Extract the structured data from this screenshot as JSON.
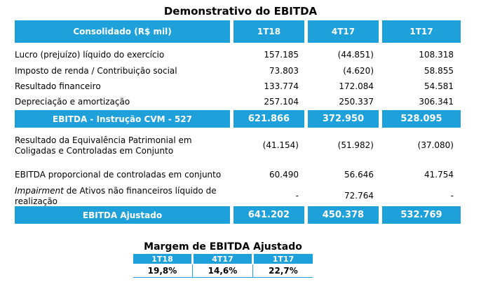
{
  "title": "Demonstrativo do EBITDA",
  "header": {
    "label": "Consolidado (R$ mil)",
    "periods": [
      "1T18",
      "4T17",
      "1T17"
    ]
  },
  "rows_a": [
    {
      "label": "Lucro (prejuízo) líquido do exercício",
      "values": [
        "157.185",
        "(44.851)",
        "108.318"
      ]
    },
    {
      "label": "Imposto de renda / Contribuição social",
      "values": [
        "73.803",
        "(4.620)",
        "58.855"
      ]
    },
    {
      "label": "Resultado financeiro",
      "values": [
        "133.774",
        "172.084",
        "54.581"
      ]
    },
    {
      "label": "Depreciação e amortização",
      "values": [
        "257.104",
        "250.337",
        "306.341"
      ]
    }
  ],
  "ebitda_cvm": {
    "label": "EBITDA - Instrução CVM - 527",
    "values": [
      "621.866",
      "372.950",
      "528.095"
    ]
  },
  "rows_b": [
    {
      "label_line1": "Resultado da Equivalência Patrimonial em",
      "label_line2": "Coligadas e Controladas em Conjunto",
      "values": [
        "(41.154)",
        "(51.982)",
        "(37.080)"
      ]
    },
    {
      "label": "EBITDA proporcional de controladas em conjunto",
      "values": [
        "60.490",
        "56.646",
        "41.754"
      ]
    },
    {
      "label_italic": "Impairment",
      "label_rest": " de Ativos não financeiros líquido de",
      "label_line2": "realização",
      "values": [
        "-",
        "72.764",
        "-"
      ]
    }
  ],
  "ebitda_ajustado": {
    "label": "EBITDA Ajustado",
    "values": [
      "641.202",
      "450.378",
      "532.769"
    ]
  },
  "margem": {
    "title": "Margem de EBITDA Ajustado",
    "periods": [
      "1T18",
      "4T17",
      "1T17"
    ],
    "values": [
      "19,8%",
      "14,6%",
      "22,7%"
    ]
  },
  "colors": {
    "accent": "#1ea1db"
  }
}
